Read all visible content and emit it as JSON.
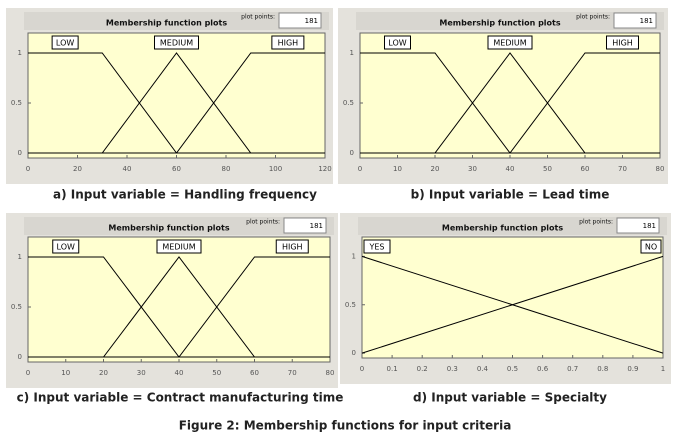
{
  "caption": "Figure 2: Membership functions for input criteria",
  "chart_data": [
    {
      "type": "line",
      "title": "Membership function plots",
      "plot_points_label": "plot points:",
      "plot_points": "181",
      "caption": "a) Input variable = Handling frequency",
      "xlim": [
        0,
        120
      ],
      "xticks": [
        0,
        20,
        40,
        60,
        80,
        100,
        120
      ],
      "ylim": [
        -0.05,
        1.2
      ],
      "yticks": [
        0,
        0.5,
        1
      ],
      "series": [
        {
          "name": "LOW",
          "color": "#000000",
          "x": [
            0,
            30,
            60,
            120
          ],
          "values": [
            1,
            1,
            0,
            0
          ]
        },
        {
          "name": "MEDIUM",
          "color": "#000000",
          "x": [
            0,
            30,
            60,
            90,
            120
          ],
          "values": [
            0,
            0,
            1,
            0,
            0
          ]
        },
        {
          "name": "HIGH",
          "color": "#000000",
          "x": [
            0,
            60,
            90,
            120
          ],
          "values": [
            0,
            0,
            1,
            1
          ]
        }
      ]
    },
    {
      "type": "line",
      "title": "Membership function plots",
      "plot_points_label": "plot points:",
      "plot_points": "181",
      "caption": "b) Input variable = Lead time",
      "xlim": [
        0,
        80
      ],
      "xticks": [
        0,
        10,
        20,
        30,
        40,
        50,
        60,
        70,
        80
      ],
      "ylim": [
        -0.05,
        1.2
      ],
      "yticks": [
        0,
        0.5,
        1
      ],
      "series": [
        {
          "name": "LOW",
          "color": "#000000",
          "x": [
            0,
            20,
            40,
            80
          ],
          "values": [
            1,
            1,
            0,
            0
          ]
        },
        {
          "name": "MEDIUM",
          "color": "#000000",
          "x": [
            0,
            20,
            40,
            60,
            80
          ],
          "values": [
            0,
            0,
            1,
            0,
            0
          ]
        },
        {
          "name": "HIGH",
          "color": "#000000",
          "x": [
            0,
            40,
            60,
            80
          ],
          "values": [
            0,
            0,
            1,
            1
          ]
        }
      ]
    },
    {
      "type": "line",
      "title": "Membership function plots",
      "plot_points_label": "plot points:",
      "plot_points": "181",
      "caption": "c) Input variable = Contract manufacturing time",
      "xlim": [
        0,
        80
      ],
      "xticks": [
        0,
        10,
        20,
        30,
        40,
        50,
        60,
        70,
        80
      ],
      "ylim": [
        -0.05,
        1.2
      ],
      "yticks": [
        0,
        0.5,
        1
      ],
      "series": [
        {
          "name": "LOW",
          "color": "#000000",
          "x": [
            0,
            20,
            40,
            80
          ],
          "values": [
            1,
            1,
            0,
            0
          ]
        },
        {
          "name": "MEDIUM",
          "color": "#000000",
          "x": [
            0,
            20,
            40,
            60,
            80
          ],
          "values": [
            0,
            0,
            1,
            0,
            0
          ]
        },
        {
          "name": "HIGH",
          "color": "#000000",
          "x": [
            0,
            40,
            60,
            80
          ],
          "values": [
            0,
            0,
            1,
            1
          ]
        }
      ]
    },
    {
      "type": "line",
      "title": "Membership function plots",
      "plot_points_label": "plot points:",
      "plot_points": "181",
      "caption": "d) Input variable = Specialty",
      "xlim": [
        0,
        1
      ],
      "xticks": [
        0,
        0.1,
        0.2,
        0.3,
        0.4,
        0.5,
        0.6,
        0.7,
        0.8,
        0.9,
        1
      ],
      "ylim": [
        -0.05,
        1.2
      ],
      "yticks": [
        0,
        0.5,
        1
      ],
      "series": [
        {
          "name": "YES",
          "color": "#000000",
          "x": [
            0,
            1
          ],
          "values": [
            1,
            0
          ]
        },
        {
          "name": "NO",
          "color": "#000000",
          "x": [
            0,
            1
          ],
          "values": [
            0,
            1
          ]
        }
      ]
    }
  ]
}
